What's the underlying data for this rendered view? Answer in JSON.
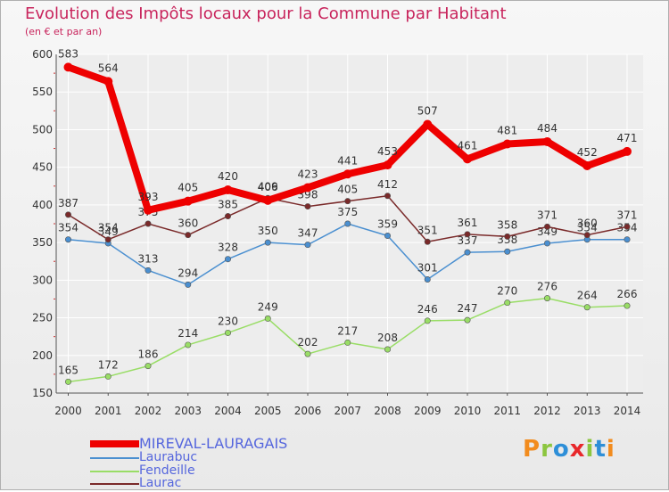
{
  "title": "Evolution des Impôts locaux pour la Commune par Habitant",
  "subtitle": "(en € et par an)",
  "logo": {
    "text": "Proxiti",
    "colors": [
      "#f28c1e",
      "#8cc63f",
      "#2e8fd8",
      "#e8282b",
      "#8cc63f",
      "#2e8fd8",
      "#f28c1e"
    ]
  },
  "chart_data": {
    "type": "line",
    "x": [
      "2000",
      "2001",
      "2002",
      "2003",
      "2004",
      "2005",
      "2006",
      "2007",
      "2008",
      "2009",
      "2010",
      "2011",
      "2012",
      "2013",
      "2014"
    ],
    "ylim": [
      150,
      600
    ],
    "yticks": [
      150,
      200,
      250,
      300,
      350,
      400,
      450,
      500,
      550,
      600
    ],
    "grid": true,
    "legend_position": "bottom-left",
    "series": [
      {
        "name": "MIREVAL-LAURAGAIS",
        "color": "#ee0000",
        "values": [
          583,
          564,
          393,
          405,
          420,
          406,
          423,
          441,
          453,
          507,
          461,
          481,
          484,
          452,
          471
        ]
      },
      {
        "name": "Laurabuc",
        "color": "#4a8fd0",
        "values": [
          354,
          349,
          313,
          294,
          328,
          350,
          347,
          375,
          359,
          301,
          337,
          338,
          349,
          354,
          354
        ]
      },
      {
        "name": "Fendeille",
        "color": "#99dd66",
        "values": [
          165,
          172,
          186,
          214,
          230,
          249,
          202,
          217,
          208,
          246,
          247,
          270,
          276,
          264,
          266
        ]
      },
      {
        "name": "Laurac",
        "color": "#7a2a2a",
        "values": [
          387,
          354,
          375,
          360,
          385,
          409,
          398,
          405,
          412,
          351,
          361,
          358,
          371,
          360,
          371
        ]
      }
    ]
  }
}
